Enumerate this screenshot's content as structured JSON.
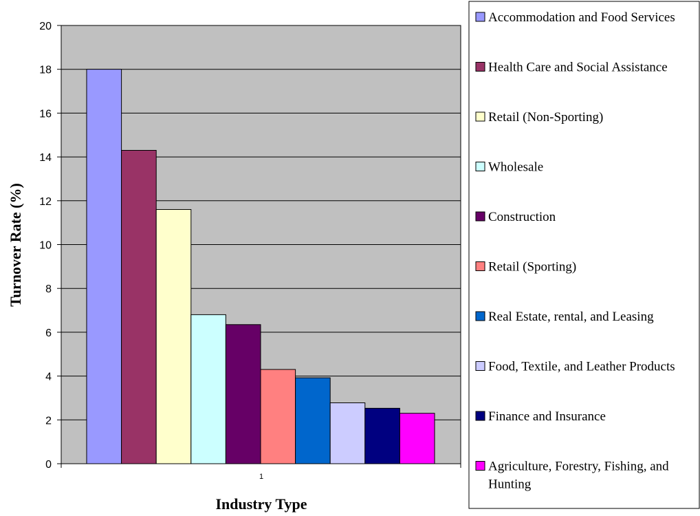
{
  "chart_data": {
    "type": "bar",
    "categories": [
      "1"
    ],
    "series": [
      {
        "name": "Accommodation and Food Services",
        "values": [
          18.0
        ],
        "color": "#9999FF"
      },
      {
        "name": "Health Care and Social Assistance",
        "values": [
          14.3
        ],
        "color": "#993366"
      },
      {
        "name": "Retail (Non-Sporting)",
        "values": [
          11.6
        ],
        "color": "#FFFFCC"
      },
      {
        "name": "Wholesale",
        "values": [
          6.8
        ],
        "color": "#CCFFFF"
      },
      {
        "name": "Construction",
        "values": [
          6.35
        ],
        "color": "#660066"
      },
      {
        "name": "Retail (Sporting)",
        "values": [
          4.3
        ],
        "color": "#FF8080"
      },
      {
        "name": "Real Estate, rental, and Leasing",
        "values": [
          3.92
        ],
        "color": "#0066CC"
      },
      {
        "name": "Food, Textile, and Leather Products",
        "values": [
          2.78
        ],
        "color": "#CCCCFF"
      },
      {
        "name": "Finance and Insurance",
        "values": [
          2.53
        ],
        "color": "#000080"
      },
      {
        "name": "Agriculture, Forestry, Fishing, and Hunting",
        "values": [
          2.3
        ],
        "color": "#FF00FF"
      }
    ],
    "title": "",
    "xlabel": "Industry Type",
    "ylabel": "Turnover Rate (%)",
    "ylim": [
      0,
      20
    ],
    "yticks": [
      "0",
      "2",
      "4",
      "6",
      "8",
      "10",
      "12",
      "14",
      "16",
      "18",
      "20"
    ],
    "grid": true,
    "plot_background": "#C0C0C0",
    "legend": "right"
  }
}
